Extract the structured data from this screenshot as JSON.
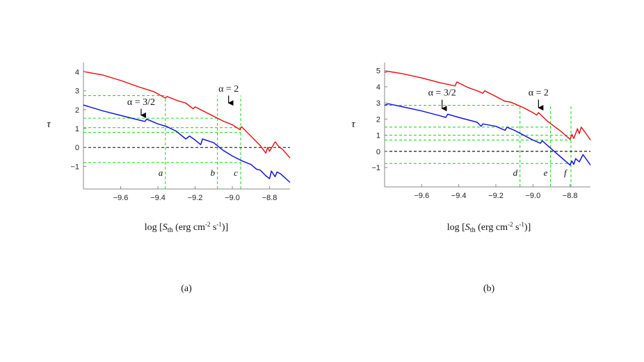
{
  "colors": {
    "red_curve": "#e8161b",
    "blue_curve": "#1414e0",
    "guide": "#22dd22",
    "zero": "#000000",
    "axis": "#888888"
  },
  "chart_data": [
    {
      "panel_label": "(a)",
      "type": "line",
      "ylabel": "τ",
      "xlabel_parts": {
        "pre": "log [",
        "S": "S",
        "sub": "th",
        "mid": " (erg cm",
        "exp1": "-2",
        "mid2": " s",
        "exp2": "-1",
        "post": ")]"
      },
      "xlim": [
        -9.8,
        -8.69
      ],
      "ylim": [
        -2.2,
        4.5
      ],
      "xticks": [
        -9.6,
        -9.4,
        -9.2,
        -9.0,
        -8.8
      ],
      "xtick_labels": [
        "−9.6",
        "−9.4",
        "−9.2",
        "−9.0",
        "−8.8"
      ],
      "yticks": [
        4,
        3,
        2,
        1,
        0,
        -1
      ],
      "ytick_labels": [
        "4",
        "3",
        "2",
        "1",
        "0",
        "−1"
      ],
      "zero_line": 0,
      "series": [
        {
          "name": "α = 2",
          "color": "#e8161b",
          "points": [
            [
              -9.8,
              4.02
            ],
            [
              -9.7,
              3.85
            ],
            [
              -9.6,
              3.55
            ],
            [
              -9.5,
              3.2
            ],
            [
              -9.42,
              2.95
            ],
            [
              -9.36,
              2.62
            ],
            [
              -9.35,
              2.7
            ],
            [
              -9.3,
              2.5
            ],
            [
              -9.25,
              2.35
            ],
            [
              -9.21,
              2.05
            ],
            [
              -9.2,
              2.15
            ],
            [
              -9.15,
              1.9
            ],
            [
              -9.1,
              1.65
            ],
            [
              -9.05,
              1.4
            ],
            [
              -9.0,
              1.2
            ],
            [
              -8.96,
              0.95
            ],
            [
              -8.95,
              1.1
            ],
            [
              -8.9,
              0.6
            ],
            [
              -8.85,
              0.1
            ],
            [
              -8.82,
              -0.3
            ],
            [
              -8.81,
              0.0
            ],
            [
              -8.8,
              -0.2
            ],
            [
              -8.77,
              0.3
            ],
            [
              -8.75,
              0.05
            ],
            [
              -8.73,
              -0.1
            ],
            [
              -8.69,
              -0.55
            ]
          ]
        },
        {
          "name": "α = 3/2",
          "color": "#1414e0",
          "points": [
            [
              -9.8,
              2.25
            ],
            [
              -9.75,
              2.1
            ],
            [
              -9.7,
              1.95
            ],
            [
              -9.6,
              1.7
            ],
            [
              -9.5,
              1.45
            ],
            [
              -9.47,
              1.38
            ],
            [
              -9.46,
              1.5
            ],
            [
              -9.4,
              1.25
            ],
            [
              -9.35,
              1.1
            ],
            [
              -9.3,
              0.85
            ],
            [
              -9.25,
              0.45
            ],
            [
              -9.23,
              0.6
            ],
            [
              -9.2,
              0.4
            ],
            [
              -9.17,
              0.15
            ],
            [
              -9.16,
              0.45
            ],
            [
              -9.1,
              0.25
            ],
            [
              -9.05,
              -0.15
            ],
            [
              -9.0,
              -0.45
            ],
            [
              -8.95,
              -0.7
            ],
            [
              -8.9,
              -0.9
            ],
            [
              -8.87,
              -1.15
            ],
            [
              -8.85,
              -1.2
            ],
            [
              -8.82,
              -1.5
            ],
            [
              -8.8,
              -1.65
            ],
            [
              -8.79,
              -1.25
            ],
            [
              -8.77,
              -1.55
            ],
            [
              -8.76,
              -1.3
            ],
            [
              -8.74,
              -1.4
            ],
            [
              -8.69,
              -1.85
            ]
          ]
        }
      ],
      "guides_h": [
        2.75,
        1.55,
        1.05,
        0.8,
        -0.8
      ],
      "guides_v": [
        {
          "x": -9.36,
          "label": "a",
          "label_y": -1.35
        },
        {
          "x": -9.08,
          "label": "b",
          "label_y": -1.35
        },
        {
          "x": -8.955,
          "label": "c",
          "label_y": -1.35
        }
      ],
      "annotations": [
        {
          "text": "α = 3/2",
          "text_x": -9.49,
          "text_y": 2.25,
          "arrow_x": -9.49,
          "arrow_from": 2.05,
          "arrow_to": 1.45
        },
        {
          "text": "α = 2",
          "text_x": -9.02,
          "text_y": 2.95,
          "arrow_x": -9.02,
          "arrow_from": 2.75,
          "arrow_to": 2.1
        }
      ]
    },
    {
      "panel_label": "(b)",
      "type": "line",
      "ylabel": "τ",
      "xlabel_parts": {
        "pre": "log [",
        "S": "S",
        "sub": "th",
        "mid": " (erg cm",
        "exp1": "-2",
        "mid2": " s",
        "exp2": "-1",
        "post": ")]"
      },
      "xlim": [
        -9.8,
        -8.69
      ],
      "ylim": [
        -2.2,
        5.5
      ],
      "xticks": [
        -9.6,
        -9.4,
        -9.2,
        -9.0,
        -8.8
      ],
      "xtick_labels": [
        "−9.6",
        "−9.4",
        "−9.2",
        "−9.0",
        "−8.8"
      ],
      "yticks": [
        5,
        4,
        3,
        2,
        1,
        0,
        -1
      ],
      "ytick_labels": [
        "5",
        "4",
        "3",
        "2",
        "1",
        "0",
        "−1"
      ],
      "zero_line": 0,
      "series": [
        {
          "name": "α = 2",
          "color": "#e8161b",
          "points": [
            [
              -9.8,
              4.9
            ],
            [
              -9.78,
              4.95
            ],
            [
              -9.7,
              4.8
            ],
            [
              -9.6,
              4.55
            ],
            [
              -9.5,
              4.25
            ],
            [
              -9.42,
              4.05
            ],
            [
              -9.41,
              4.3
            ],
            [
              -9.35,
              3.95
            ],
            [
              -9.3,
              3.75
            ],
            [
              -9.27,
              3.6
            ],
            [
              -9.26,
              3.75
            ],
            [
              -9.2,
              3.4
            ],
            [
              -9.15,
              3.1
            ],
            [
              -9.12,
              3.05
            ],
            [
              -9.1,
              2.95
            ],
            [
              -9.05,
              2.7
            ],
            [
              -9.0,
              2.4
            ],
            [
              -8.98,
              2.25
            ],
            [
              -8.97,
              2.4
            ],
            [
              -8.92,
              1.85
            ],
            [
              -8.85,
              1.25
            ],
            [
              -8.8,
              0.75
            ],
            [
              -8.79,
              1.05
            ],
            [
              -8.78,
              0.8
            ],
            [
              -8.76,
              1.4
            ],
            [
              -8.75,
              1.1
            ],
            [
              -8.74,
              1.5
            ],
            [
              -8.72,
              1.2
            ],
            [
              -8.69,
              0.7
            ]
          ]
        },
        {
          "name": "α = 3/2",
          "color": "#1414e0",
          "points": [
            [
              -9.8,
              2.85
            ],
            [
              -9.78,
              2.95
            ],
            [
              -9.7,
              2.75
            ],
            [
              -9.6,
              2.5
            ],
            [
              -9.5,
              2.2
            ],
            [
              -9.47,
              2.1
            ],
            [
              -9.46,
              2.3
            ],
            [
              -9.4,
              2.1
            ],
            [
              -9.3,
              1.8
            ],
            [
              -9.28,
              1.55
            ],
            [
              -9.27,
              1.7
            ],
            [
              -9.2,
              1.55
            ],
            [
              -9.15,
              1.3
            ],
            [
              -9.14,
              1.5
            ],
            [
              -9.1,
              1.3
            ],
            [
              -9.05,
              1.0
            ],
            [
              -9.0,
              0.7
            ],
            [
              -8.96,
              0.5
            ],
            [
              -8.95,
              0.65
            ],
            [
              -8.9,
              0.15
            ],
            [
              -8.85,
              -0.35
            ],
            [
              -8.8,
              -0.85
            ],
            [
              -8.79,
              -0.6
            ],
            [
              -8.78,
              -0.8
            ],
            [
              -8.77,
              -0.45
            ],
            [
              -8.75,
              -0.65
            ],
            [
              -8.73,
              -0.2
            ],
            [
              -8.69,
              -0.85
            ]
          ]
        }
      ],
      "guides_h": [
        2.85,
        1.5,
        1.0,
        0.7,
        -0.75
      ],
      "guides_v": [
        {
          "x": -9.07,
          "label": "d",
          "label_y": -1.35
        },
        {
          "x": -8.905,
          "label": "e",
          "label_y": -1.35
        },
        {
          "x": -8.795,
          "label": "f",
          "label_y": -1.35
        }
      ],
      "annotations": [
        {
          "text": "α = 3/2",
          "text_x": -9.49,
          "text_y": 3.45,
          "arrow_x": -9.49,
          "arrow_from": 3.2,
          "arrow_to": 2.35
        },
        {
          "text": "α = 2",
          "text_x": -8.97,
          "text_y": 3.45,
          "arrow_x": -8.97,
          "arrow_from": 3.2,
          "arrow_to": 2.4
        }
      ]
    }
  ]
}
